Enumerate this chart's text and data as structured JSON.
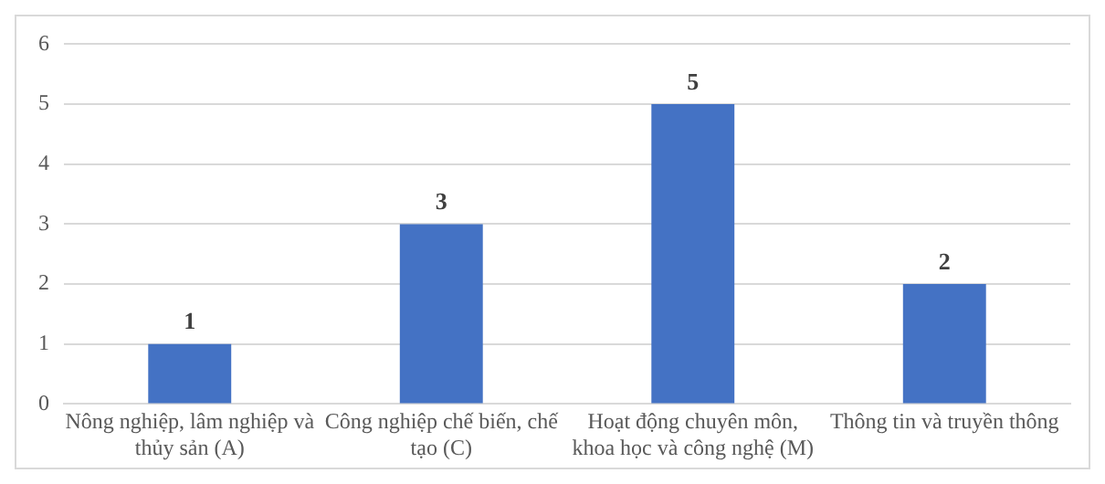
{
  "chart_data": {
    "type": "bar",
    "categories": [
      "Nông nghiệp, lâm nghiệp và thủy sản (A)",
      "Công nghiệp chế biến, chế tạo (C)",
      "Hoạt động chuyên môn, khoa học và công nghệ (M)",
      "Thông tin và truyền thông"
    ],
    "values": [
      1,
      3,
      5,
      2
    ],
    "color": "#4472c4",
    "ylim": [
      0,
      6
    ],
    "yticks": [
      0,
      1,
      2,
      3,
      4,
      5,
      6
    ],
    "grid": "y",
    "data_labels": true,
    "legend": false
  }
}
